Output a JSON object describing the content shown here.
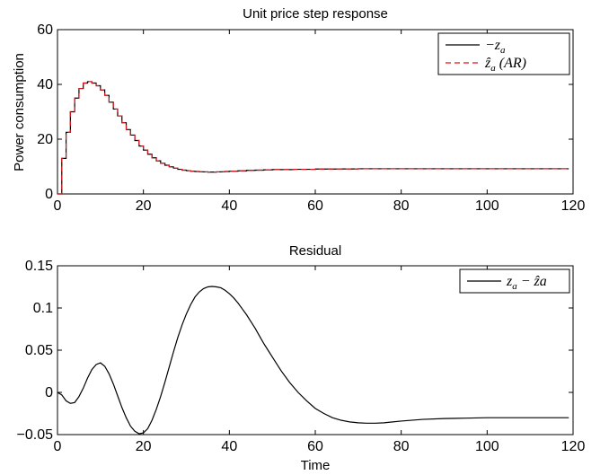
{
  "chart_data": [
    {
      "type": "line",
      "title": "Unit price step response",
      "xlabel": "",
      "ylabel": "Power consumption",
      "xlim": [
        0,
        120
      ],
      "ylim": [
        0,
        60
      ],
      "xticks": [
        "0",
        "20",
        "40",
        "60",
        "80",
        "100",
        "120"
      ],
      "yticks": [
        "0",
        "20",
        "40",
        "60"
      ],
      "legend_position": "top-right",
      "series": [
        {
          "name": "−z_a",
          "legend_label": "−z",
          "legend_sub": "a",
          "legend_tail": "",
          "style": "step",
          "color": "#000000",
          "dash": "solid",
          "x": [
            0,
            1,
            2,
            3,
            4,
            5,
            6,
            7,
            8,
            9,
            10,
            11,
            12,
            13,
            14,
            15,
            16,
            17,
            18,
            19,
            20,
            21,
            22,
            23,
            24,
            25,
            26,
            27,
            28,
            29,
            30,
            31,
            32,
            33,
            34,
            35,
            36,
            37,
            38,
            39,
            40,
            42,
            44,
            46,
            48,
            50,
            55,
            60,
            65,
            70,
            75,
            80,
            85,
            90,
            95,
            100,
            105,
            110,
            115,
            119
          ],
          "y": [
            0,
            13,
            22.5,
            30,
            35,
            38.5,
            40.5,
            41,
            40.5,
            39.5,
            38,
            36,
            33.5,
            31,
            28.5,
            26,
            23.5,
            21.5,
            19.5,
            17.5,
            16,
            14.5,
            13.2,
            12.1,
            11.2,
            10.5,
            9.9,
            9.4,
            9,
            8.7,
            8.5,
            8.3,
            8.2,
            8.1,
            8.05,
            8.0,
            8.0,
            8.05,
            8.1,
            8.2,
            8.3,
            8.45,
            8.6,
            8.7,
            8.8,
            8.9,
            9.0,
            9.1,
            9.15,
            9.2,
            9.2,
            9.2,
            9.2,
            9.2,
            9.2,
            9.2,
            9.2,
            9.2,
            9.2,
            9.2
          ]
        },
        {
          "name": "ẑ_a (AR)",
          "legend_label": "ẑ",
          "legend_sub": "a",
          "legend_tail": " (AR)",
          "style": "step",
          "color": "#d9161c",
          "dash": "6,4",
          "x": [
            0,
            1,
            2,
            3,
            4,
            5,
            6,
            7,
            8,
            9,
            10,
            11,
            12,
            13,
            14,
            15,
            16,
            17,
            18,
            19,
            20,
            21,
            22,
            23,
            24,
            25,
            26,
            27,
            28,
            29,
            30,
            31,
            32,
            33,
            34,
            35,
            36,
            37,
            38,
            39,
            40,
            42,
            44,
            46,
            48,
            50,
            55,
            60,
            65,
            70,
            75,
            80,
            85,
            90,
            95,
            100,
            105,
            110,
            115,
            119
          ],
          "y": [
            0,
            13,
            22.5,
            30,
            35,
            38.5,
            40.5,
            41,
            40.5,
            39.5,
            38,
            36,
            33.5,
            31,
            28.5,
            26,
            23.5,
            21.5,
            19.5,
            17.5,
            16,
            14.5,
            13.2,
            12.1,
            11.2,
            10.5,
            9.9,
            9.4,
            9,
            8.7,
            8.5,
            8.3,
            8.2,
            8.1,
            8.05,
            8.0,
            8.0,
            8.05,
            8.1,
            8.2,
            8.3,
            8.45,
            8.6,
            8.7,
            8.8,
            8.9,
            9.0,
            9.1,
            9.15,
            9.2,
            9.2,
            9.2,
            9.2,
            9.2,
            9.2,
            9.2,
            9.2,
            9.2,
            9.2,
            9.2
          ]
        }
      ]
    },
    {
      "type": "line",
      "title": "Residual",
      "xlabel": "Time",
      "ylabel": "",
      "xlim": [
        0,
        120
      ],
      "ylim": [
        -0.05,
        0.15
      ],
      "xticks": [
        "0",
        "20",
        "40",
        "60",
        "80",
        "100",
        "120"
      ],
      "yticks": [
        "−0.05",
        "0",
        "0.05",
        "0.1",
        "0.15"
      ],
      "legend_position": "top-right",
      "series": [
        {
          "name": "z_a − ẑ_a",
          "legend_label": "z",
          "legend_sub": "a",
          "legend_tail": " − ẑa",
          "style": "smooth",
          "color": "#000000",
          "dash": "solid",
          "x": [
            0,
            1,
            2,
            3,
            4,
            5,
            6,
            7,
            8,
            9,
            10,
            11,
            12,
            13,
            14,
            15,
            16,
            17,
            18,
            19,
            20,
            21,
            22,
            23,
            24,
            25,
            26,
            27,
            28,
            29,
            30,
            31,
            32,
            33,
            34,
            35,
            36,
            37,
            38,
            39,
            40,
            41,
            42,
            43,
            44,
            45,
            46,
            47,
            48,
            49,
            50,
            52,
            54,
            56,
            58,
            60,
            62,
            64,
            66,
            68,
            70,
            72,
            74,
            76,
            78,
            80,
            85,
            90,
            95,
            100,
            105,
            110,
            115,
            119
          ],
          "y": [
            0,
            -0.003,
            -0.01,
            -0.013,
            -0.012,
            -0.005,
            0.005,
            0.017,
            0.027,
            0.033,
            0.035,
            0.031,
            0.022,
            0.01,
            -0.004,
            -0.018,
            -0.03,
            -0.04,
            -0.046,
            -0.049,
            -0.048,
            -0.043,
            -0.033,
            -0.02,
            -0.005,
            0.012,
            0.03,
            0.048,
            0.065,
            0.08,
            0.093,
            0.104,
            0.113,
            0.119,
            0.123,
            0.125,
            0.1255,
            0.125,
            0.124,
            0.121,
            0.117,
            0.112,
            0.106,
            0.099,
            0.092,
            0.084,
            0.076,
            0.067,
            0.058,
            0.05,
            0.042,
            0.026,
            0.012,
            0,
            -0.01,
            -0.019,
            -0.025,
            -0.03,
            -0.033,
            -0.035,
            -0.036,
            -0.0365,
            -0.0365,
            -0.036,
            -0.035,
            -0.034,
            -0.032,
            -0.031,
            -0.0305,
            -0.03,
            -0.03,
            -0.03,
            -0.03,
            -0.03
          ]
        }
      ]
    }
  ]
}
